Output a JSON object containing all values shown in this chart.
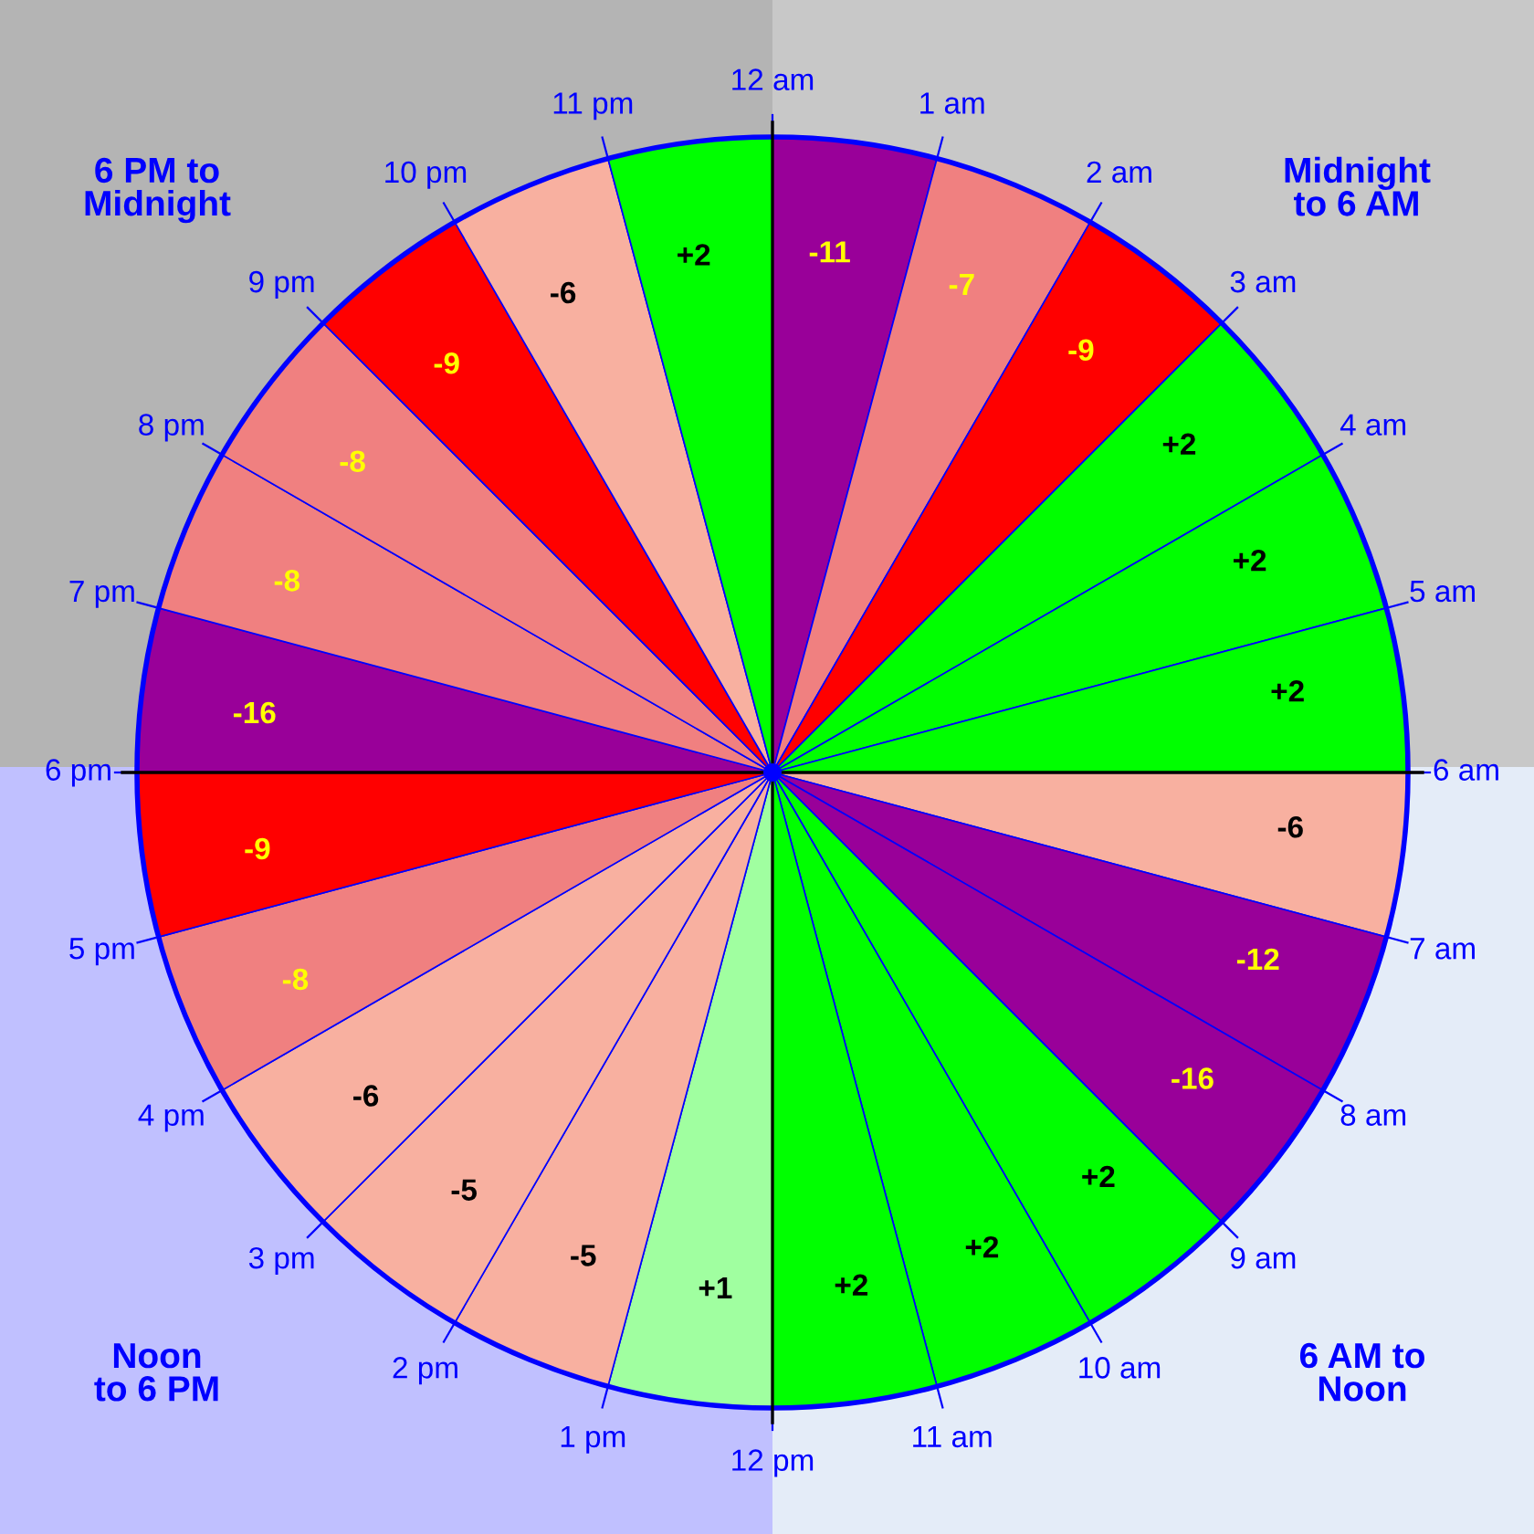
{
  "chart_data": {
    "type": "other",
    "categories": [
      "12 am",
      "1 am",
      "2 am",
      "3 am",
      "4 am",
      "5 am",
      "6 am",
      "7 am",
      "8 am",
      "9 am",
      "10 am",
      "11 am",
      "12 pm",
      "1 pm",
      "2 pm",
      "3 pm",
      "4 pm",
      "5 pm",
      "6 pm",
      "7 pm",
      "8 pm",
      "9 pm",
      "10 pm",
      "11 pm"
    ],
    "values": [
      -11,
      -7,
      -9,
      2,
      2,
      2,
      -6,
      -12,
      -16,
      2,
      2,
      2,
      1,
      -5,
      -5,
      -6,
      -8,
      -9,
      -16,
      -8,
      -8,
      -9,
      -6,
      2
    ],
    "value_labels": [
      "-11",
      "-7",
      "-9",
      "+2",
      "+2",
      "+2",
      "-6",
      "-12",
      "-16",
      "+2",
      "+2",
      "+2",
      "+1",
      "-5",
      "-5",
      "-6",
      "-8",
      "-9",
      "-16",
      "-8",
      "-8",
      "-9",
      "-6",
      "+2"
    ],
    "colors": [
      "#990099",
      "#f08080",
      "#ff0000",
      "#00ff00",
      "#00ff00",
      "#00ff00",
      "#f8b0a0",
      "#990099",
      "#990099",
      "#00ff00",
      "#00ff00",
      "#00ff00",
      "#a0ffa0",
      "#f8b0a0",
      "#f8b0a0",
      "#f8b0a0",
      "#f08080",
      "#ff0000",
      "#990099",
      "#f08080",
      "#f08080",
      "#ff0000",
      "#f8b0a0",
      "#00ff00"
    ],
    "annotations": [
      "Midnight\nto 6 AM",
      "6 AM to\nNoon",
      "Noon\nto 6 PM",
      "6 PM to\nMidnight"
    ]
  }
}
